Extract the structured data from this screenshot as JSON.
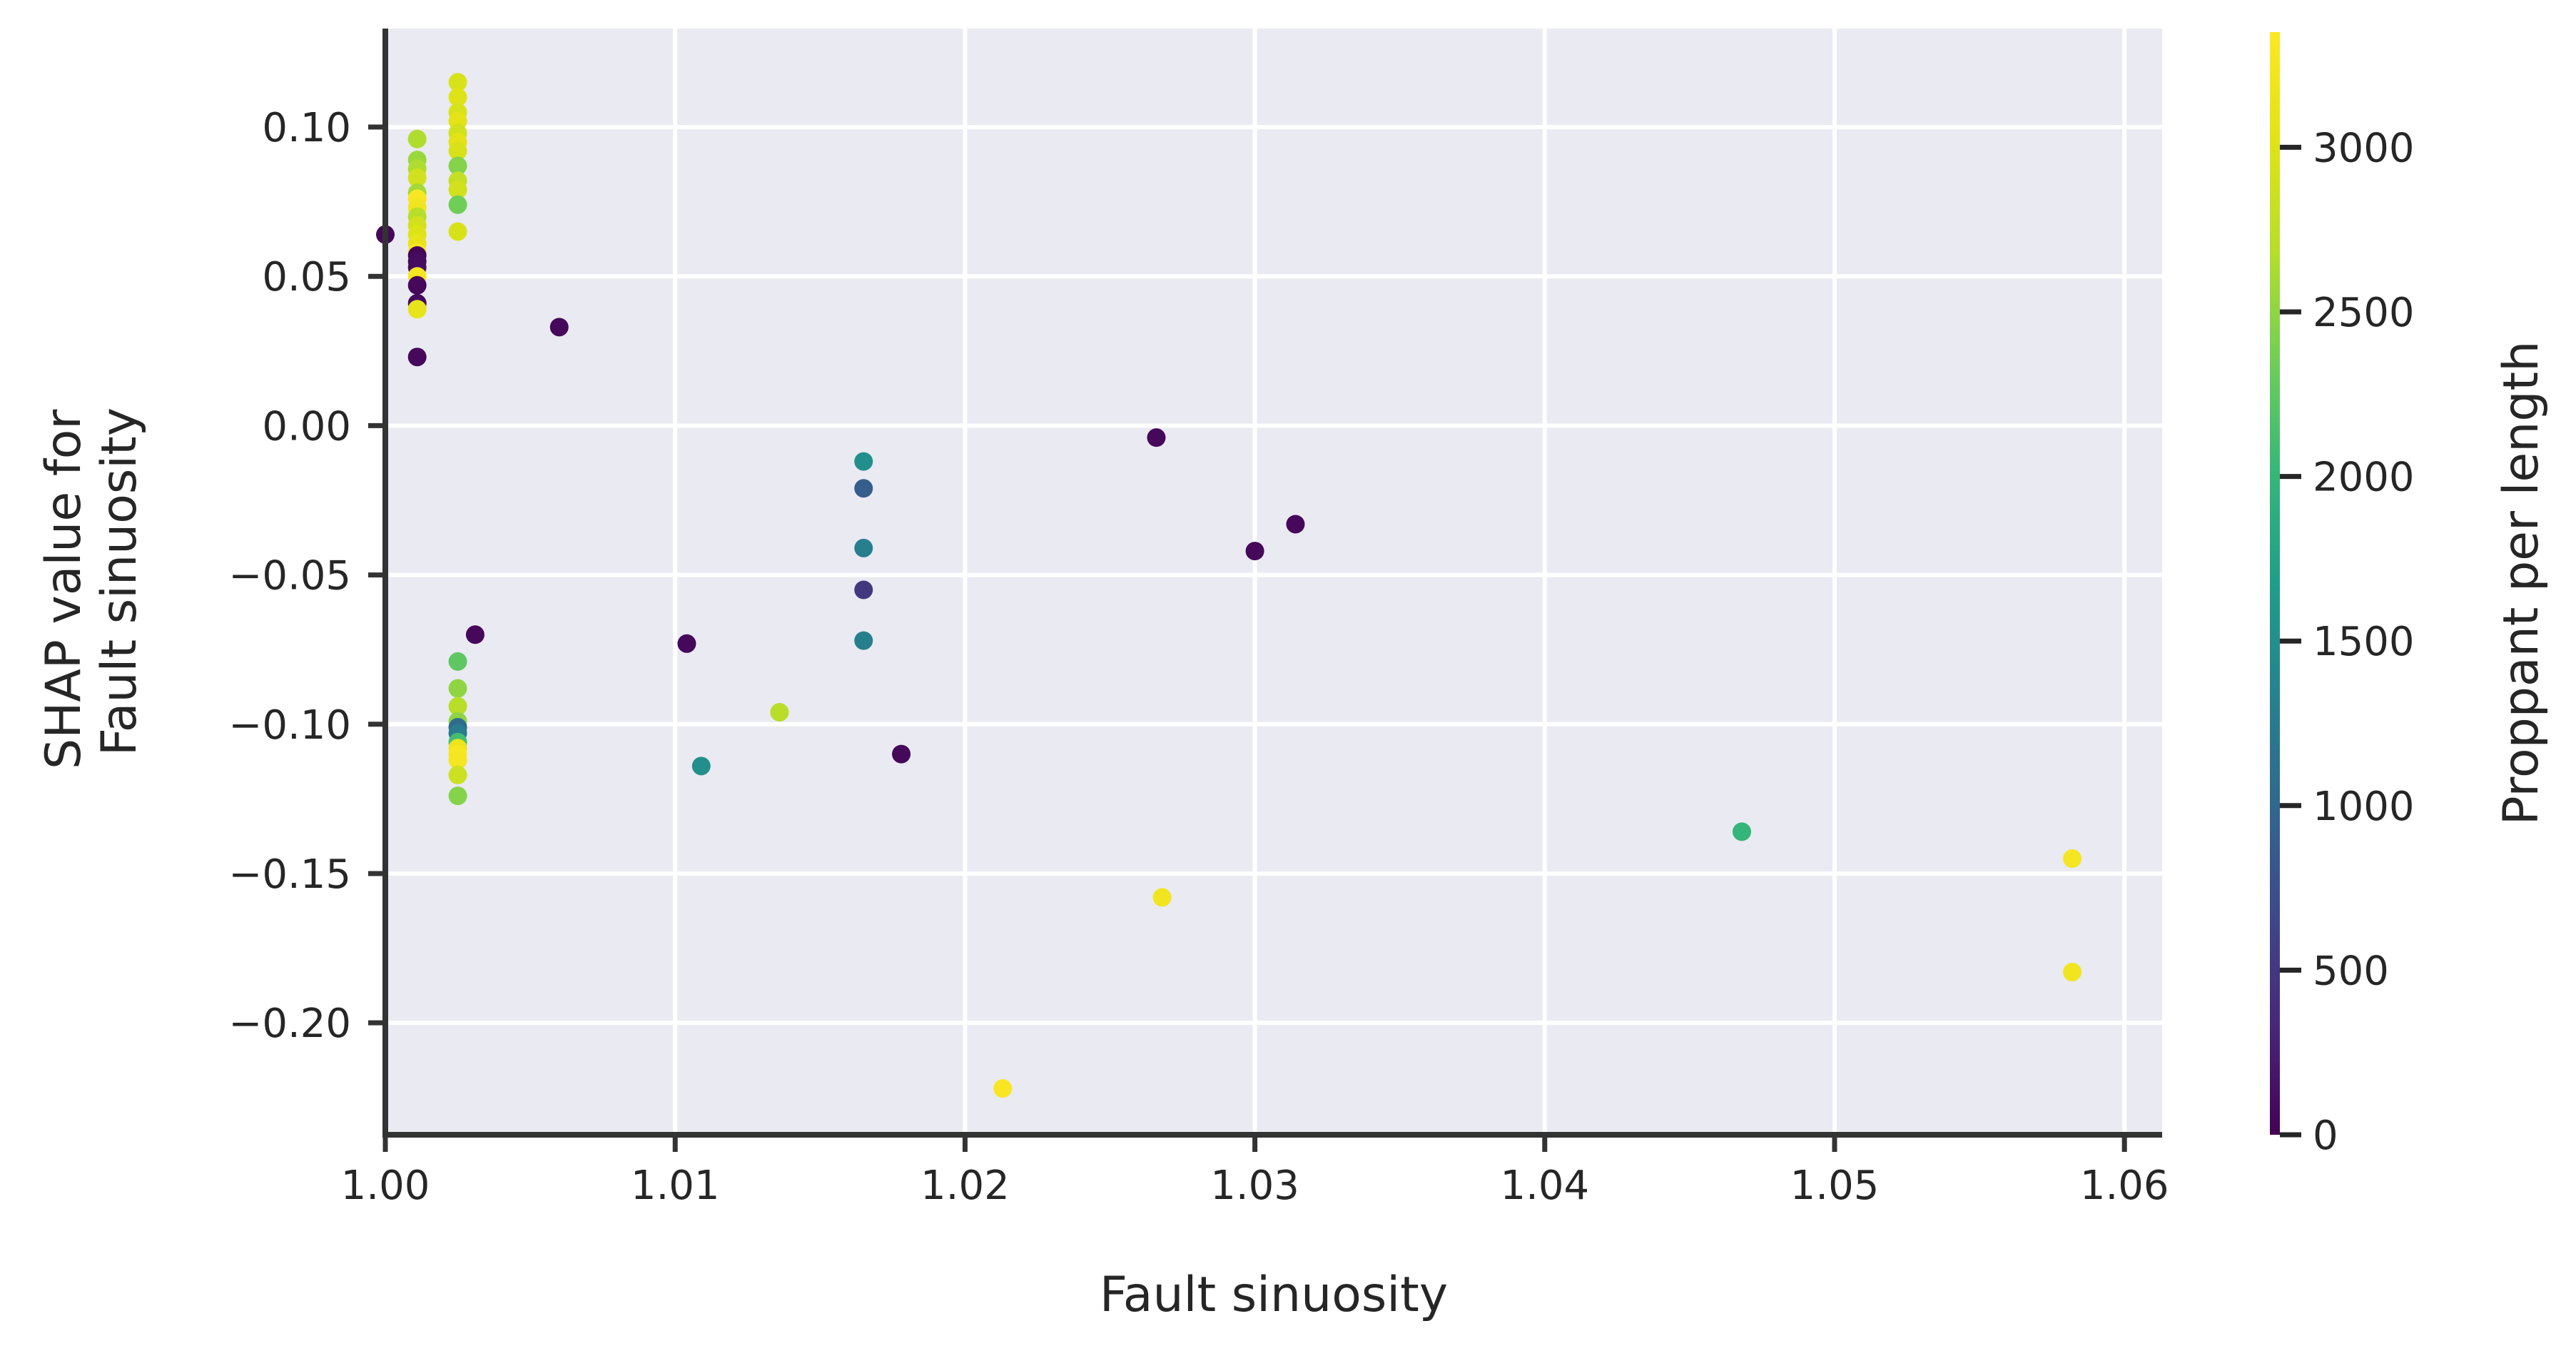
{
  "chart_data": {
    "type": "scatter",
    "xlabel": "Fault sinuosity",
    "ylabel_lines": [
      "SHAP value for",
      "Fault sinuosity"
    ],
    "colorbar_label": "Proppant per length",
    "xlim": [
      1.0,
      1.0613
    ],
    "ylim": [
      -0.2375,
      0.133
    ],
    "xticks": [
      1.0,
      1.01,
      1.02,
      1.03,
      1.04,
      1.05,
      1.06
    ],
    "xtick_labels": [
      "1.00",
      "1.01",
      "1.02",
      "1.03",
      "1.04",
      "1.05",
      "1.06"
    ],
    "yticks": [
      0.1,
      0.05,
      0.0,
      -0.05,
      -0.1,
      -0.15,
      -0.2
    ],
    "ytick_labels": [
      "0.10",
      "0.05",
      "0.00",
      "−0.05",
      "−0.10",
      "−0.15",
      "−0.20"
    ],
    "colorbar_range": [
      0,
      3350
    ],
    "colorbar_ticks": [
      0,
      500,
      1000,
      1500,
      2000,
      2500,
      3000
    ],
    "colorbar_tick_labels": [
      "0",
      "500",
      "1000",
      "1500",
      "2000",
      "2500",
      "3000"
    ],
    "colormap": "viridis",
    "grid": true,
    "background_color": "#eaeaf2",
    "points": [
      {
        "x": 1.0,
        "y": 0.064,
        "c": 60
      },
      {
        "x": 1.0011,
        "y": 0.096,
        "c": 2650
      },
      {
        "x": 1.0011,
        "y": 0.089,
        "c": 2550
      },
      {
        "x": 1.0011,
        "y": 0.086,
        "c": 2650
      },
      {
        "x": 1.0011,
        "y": 0.083,
        "c": 2900
      },
      {
        "x": 1.0011,
        "y": 0.078,
        "c": 2600
      },
      {
        "x": 1.0011,
        "y": 0.076,
        "c": 3300
      },
      {
        "x": 1.0011,
        "y": 0.073,
        "c": 3200
      },
      {
        "x": 1.0011,
        "y": 0.07,
        "c": 2700
      },
      {
        "x": 1.0011,
        "y": 0.067,
        "c": 2900
      },
      {
        "x": 1.0011,
        "y": 0.064,
        "c": 3000
      },
      {
        "x": 1.0011,
        "y": 0.061,
        "c": 3100
      },
      {
        "x": 1.0011,
        "y": 0.058,
        "c": 3300
      },
      {
        "x": 1.0011,
        "y": 0.057,
        "c": 40
      },
      {
        "x": 1.0011,
        "y": 0.055,
        "c": 90
      },
      {
        "x": 1.0011,
        "y": 0.053,
        "c": 110
      },
      {
        "x": 1.0011,
        "y": 0.05,
        "c": 3250
      },
      {
        "x": 1.0011,
        "y": 0.047,
        "c": 60
      },
      {
        "x": 1.0011,
        "y": 0.041,
        "c": 80
      },
      {
        "x": 1.0011,
        "y": 0.039,
        "c": 3100
      },
      {
        "x": 1.0011,
        "y": 0.023,
        "c": 60
      },
      {
        "x": 1.0025,
        "y": 0.115,
        "c": 2950
      },
      {
        "x": 1.0025,
        "y": 0.11,
        "c": 3000
      },
      {
        "x": 1.0025,
        "y": 0.105,
        "c": 2950
      },
      {
        "x": 1.0025,
        "y": 0.102,
        "c": 3050
      },
      {
        "x": 1.0025,
        "y": 0.098,
        "c": 2900
      },
      {
        "x": 1.0025,
        "y": 0.095,
        "c": 3050
      },
      {
        "x": 1.0025,
        "y": 0.092,
        "c": 2950
      },
      {
        "x": 1.0025,
        "y": 0.087,
        "c": 2450
      },
      {
        "x": 1.0025,
        "y": 0.082,
        "c": 2800
      },
      {
        "x": 1.0025,
        "y": 0.079,
        "c": 2900
      },
      {
        "x": 1.0025,
        "y": 0.074,
        "c": 2350
      },
      {
        "x": 1.0025,
        "y": 0.065,
        "c": 2950
      },
      {
        "x": 1.0025,
        "y": -0.079,
        "c": 2250
      },
      {
        "x": 1.0025,
        "y": -0.088,
        "c": 2500
      },
      {
        "x": 1.0025,
        "y": -0.094,
        "c": 2700
      },
      {
        "x": 1.0025,
        "y": -0.099,
        "c": 2500
      },
      {
        "x": 1.0025,
        "y": -0.101,
        "c": 1050
      },
      {
        "x": 1.0025,
        "y": -0.103,
        "c": 1250
      },
      {
        "x": 1.0025,
        "y": -0.106,
        "c": 2100
      },
      {
        "x": 1.0025,
        "y": -0.108,
        "c": 3150
      },
      {
        "x": 1.0025,
        "y": -0.11,
        "c": 3300
      },
      {
        "x": 1.0025,
        "y": -0.112,
        "c": 3250
      },
      {
        "x": 1.0025,
        "y": -0.117,
        "c": 2850
      },
      {
        "x": 1.0025,
        "y": -0.124,
        "c": 2450
      },
      {
        "x": 1.0031,
        "y": -0.07,
        "c": 60
      },
      {
        "x": 1.006,
        "y": 0.033,
        "c": 60
      },
      {
        "x": 1.0104,
        "y": -0.073,
        "c": 60
      },
      {
        "x": 1.0109,
        "y": -0.114,
        "c": 1500
      },
      {
        "x": 1.0136,
        "y": -0.096,
        "c": 2700
      },
      {
        "x": 1.0165,
        "y": -0.012,
        "c": 1500
      },
      {
        "x": 1.0165,
        "y": -0.021,
        "c": 900
      },
      {
        "x": 1.0165,
        "y": -0.041,
        "c": 1300
      },
      {
        "x": 1.0165,
        "y": -0.055,
        "c": 500
      },
      {
        "x": 1.0165,
        "y": -0.072,
        "c": 1300
      },
      {
        "x": 1.0178,
        "y": -0.11,
        "c": 60
      },
      {
        "x": 1.0213,
        "y": -0.222,
        "c": 3300
      },
      {
        "x": 1.0266,
        "y": -0.004,
        "c": 60
      },
      {
        "x": 1.0268,
        "y": -0.158,
        "c": 3200
      },
      {
        "x": 1.03,
        "y": -0.042,
        "c": 60
      },
      {
        "x": 1.0314,
        "y": -0.033,
        "c": 60
      },
      {
        "x": 1.0468,
        "y": -0.136,
        "c": 2000
      },
      {
        "x": 1.0582,
        "y": -0.145,
        "c": 3250
      },
      {
        "x": 1.0582,
        "y": -0.183,
        "c": 3200
      }
    ]
  }
}
